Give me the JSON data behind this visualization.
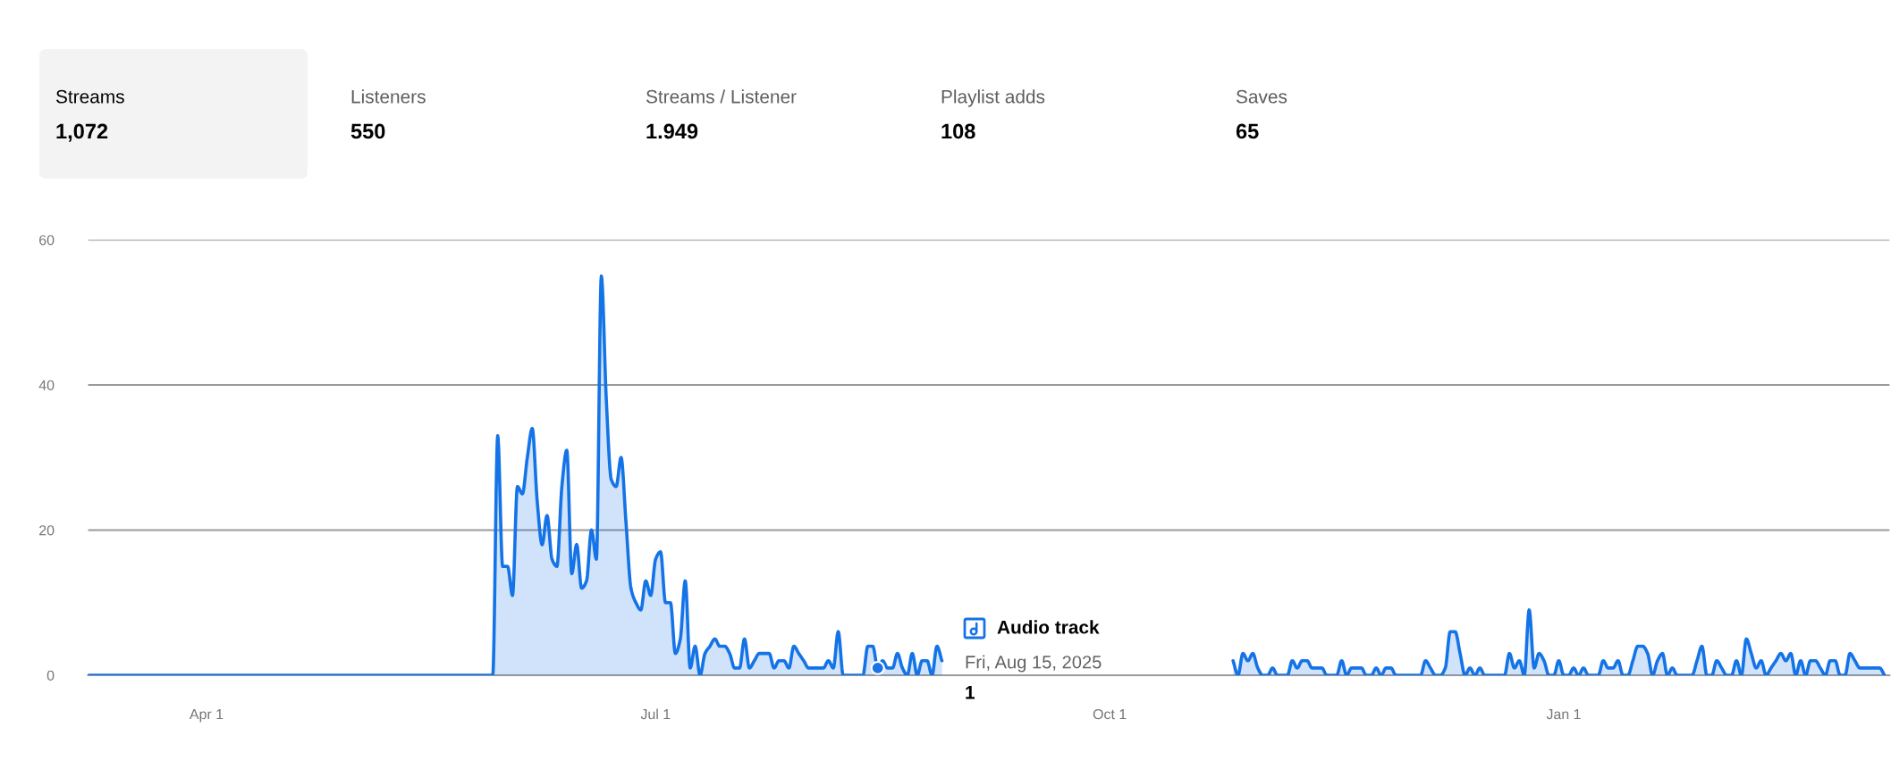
{
  "chart_data": [
    {
      "type": "other",
      "categories": [
        "Streams",
        "Listeners",
        "Streams / Listener",
        "Playlist adds",
        "Saves"
      ],
      "value_labels": [
        "1,072",
        "550",
        "1.949",
        "108",
        "65"
      ],
      "colors": [
        "#f3f3f3",
        "#ffffff",
        "#ffffff",
        "#ffffff",
        "#ffffff"
      ]
    },
    {
      "type": "area",
      "series": [
        {
          "type": "area",
          "color": "#1473e6",
          "x": [
            "2025-03-08",
            "2025-05-29",
            "2025-05-30",
            "2025-05-31",
            "2025-06-01",
            "2025-06-02",
            "2025-06-03",
            "2025-06-04",
            "2025-06-05",
            "2025-06-06",
            "2025-06-07",
            "2025-06-08",
            "2025-06-09",
            "2025-06-10",
            "2025-06-11",
            "2025-06-12",
            "2025-06-13",
            "2025-06-14",
            "2025-06-15",
            "2025-06-16",
            "2025-06-17",
            "2025-06-18",
            "2025-06-19",
            "2025-06-20",
            "2025-06-21",
            "2025-06-22",
            "2025-06-23",
            "2025-06-24",
            "2025-06-25",
            "2025-06-26",
            "2025-06-27",
            "2025-06-28",
            "2025-06-29",
            "2025-06-30",
            "2025-07-01",
            "2025-07-02",
            "2025-07-03",
            "2025-07-04",
            "2025-07-05",
            "2025-07-06",
            "2025-07-07",
            "2025-07-08",
            "2025-07-09",
            "2025-07-10",
            "2025-07-11",
            "2025-07-12",
            "2025-07-13",
            "2025-07-14",
            "2025-07-15",
            "2025-07-16",
            "2025-07-17",
            "2025-07-18",
            "2025-07-19",
            "2025-07-20",
            "2025-07-21",
            "2025-07-22",
            "2025-07-23",
            "2025-07-24",
            "2025-07-25",
            "2025-07-26",
            "2025-07-27",
            "2025-07-28",
            "2025-07-29",
            "2025-07-30",
            "2025-07-31",
            "2025-08-01",
            "2025-08-04",
            "2025-08-05",
            "2025-08-06",
            "2025-08-07",
            "2025-08-08",
            "2025-08-12",
            "2025-08-13",
            "2025-08-14",
            "2025-08-15",
            "2025-08-16",
            "2025-08-17",
            "2025-08-18",
            "2025-08-19",
            "2025-08-20",
            "2025-08-21",
            "2025-08-22",
            "2025-08-23",
            "2025-08-24",
            "2025-08-25",
            "2025-08-26",
            "2025-08-27",
            "2025-08-28",
            "2025-08-29",
            "2025-10-25",
            "2025-10-26",
            "2025-10-27",
            "2025-10-28",
            "2025-10-29",
            "2025-10-30",
            "2025-10-31",
            "2025-11-01",
            "2025-11-02",
            "2025-11-03",
            "2025-11-04",
            "2025-11-06",
            "2025-11-07",
            "2025-11-08",
            "2025-11-09",
            "2025-11-10",
            "2025-11-11",
            "2025-11-13",
            "2025-11-14",
            "2025-11-16",
            "2025-11-17",
            "2025-11-18",
            "2025-11-19",
            "2025-11-21",
            "2025-11-22",
            "2025-11-23",
            "2025-11-24",
            "2025-11-25",
            "2025-11-26",
            "2025-11-27",
            "2025-11-28",
            "2025-12-03",
            "2025-12-04",
            "2025-12-05",
            "2025-12-06",
            "2025-12-07",
            "2025-12-08",
            "2025-12-09",
            "2025-12-10",
            "2025-12-11",
            "2025-12-12",
            "2025-12-13",
            "2025-12-14",
            "2025-12-15",
            "2025-12-16",
            "2025-12-20",
            "2025-12-21",
            "2025-12-22",
            "2025-12-23",
            "2025-12-24",
            "2025-12-25",
            "2025-12-26",
            "2025-12-27",
            "2025-12-28",
            "2025-12-29",
            "2025-12-30",
            "2025-12-31",
            "2026-01-01",
            "2026-01-02",
            "2026-01-03",
            "2026-01-04",
            "2026-01-05",
            "2026-01-06",
            "2026-01-08",
            "2026-01-09",
            "2026-01-10",
            "2026-01-11",
            "2026-01-12",
            "2026-01-13",
            "2026-01-14",
            "2026-01-15",
            "2026-01-16",
            "2026-01-17",
            "2026-01-18",
            "2026-01-19",
            "2026-01-20",
            "2026-01-21",
            "2026-01-22",
            "2026-01-23",
            "2026-01-24",
            "2026-01-27",
            "2026-01-28",
            "2026-01-29",
            "2026-01-30",
            "2026-01-31",
            "2026-02-01",
            "2026-02-02",
            "2026-02-03",
            "2026-02-04",
            "2026-02-05",
            "2026-02-06",
            "2026-02-07",
            "2026-02-08",
            "2026-02-09",
            "2026-02-10",
            "2026-02-11",
            "2026-02-12",
            "2026-02-13",
            "2026-02-14",
            "2026-02-15",
            "2026-02-16",
            "2026-02-17",
            "2026-02-18",
            "2026-02-19",
            "2026-02-20",
            "2026-02-21",
            "2026-02-22",
            "2026-02-23",
            "2026-02-24",
            "2026-02-25",
            "2026-02-26",
            "2026-02-27",
            "2026-02-28",
            "2026-03-01",
            "2026-03-02",
            "2026-03-06",
            "2026-03-07"
          ],
          "values": [
            0,
            0,
            33,
            15,
            15,
            11,
            26,
            25,
            30,
            34,
            24,
            18,
            22,
            16,
            15,
            26,
            31,
            14,
            18,
            12,
            13,
            20,
            16,
            55,
            38,
            27,
            26,
            30,
            21,
            12,
            10,
            9,
            13,
            11,
            16,
            17,
            10,
            10,
            3,
            5,
            13,
            1,
            4,
            0,
            3,
            4,
            5,
            4,
            4,
            3,
            1,
            1,
            5,
            1,
            2,
            3,
            3,
            3,
            1,
            2,
            2,
            1,
            4,
            3,
            2,
            1,
            1,
            2,
            1,
            6,
            0,
            0,
            4,
            4,
            1,
            2,
            1,
            1,
            3,
            1,
            0,
            3,
            0,
            2,
            2,
            0,
            4,
            2,
            null,
            null,
            2,
            0,
            3,
            2,
            3,
            1,
            0,
            0,
            1,
            0,
            0,
            2,
            1,
            2,
            2,
            1,
            1,
            0,
            0,
            2,
            0,
            1,
            1,
            0,
            0,
            1,
            0,
            1,
            1,
            0,
            0,
            2,
            1,
            0,
            0,
            1,
            6,
            6,
            3,
            0,
            1,
            0,
            1,
            0,
            0,
            3,
            1,
            2,
            0,
            9,
            1,
            3,
            2,
            0,
            0,
            2,
            0,
            0,
            1,
            0,
            1,
            0,
            0,
            2,
            1,
            1,
            2,
            0,
            0,
            2,
            4,
            4,
            3,
            0,
            2,
            3,
            0,
            1,
            0,
            0,
            2,
            4,
            0,
            0,
            2,
            1,
            0,
            0,
            2,
            0,
            5,
            3,
            1,
            2,
            0,
            1,
            2,
            3,
            2,
            3,
            0,
            2,
            0,
            2,
            2,
            1,
            0,
            2,
            2,
            0,
            0,
            3,
            2,
            1,
            1,
            0
          ]
        },
        {
          "type": "scatter",
          "color": "#1a73e8",
          "marker": "circle",
          "x": [
            "2025-08-15"
          ],
          "values": [
            1
          ]
        }
      ],
      "xlim": [
        "2025-03-08",
        "2026-03-08"
      ],
      "ylim": [
        0,
        60
      ],
      "xticks": [
        {
          "value": "2025-04-01",
          "label": "Apr 1"
        },
        {
          "value": "2025-07-01",
          "label": "Jul 1"
        },
        {
          "value": "2025-10-01",
          "label": "Oct 1"
        },
        {
          "value": "2026-01-01",
          "label": "Jan 1"
        }
      ],
      "yticks": [
        0,
        20,
        40,
        60
      ],
      "grid": "y",
      "annotations": [
        "Audio track\nFri, Aug 15, 2025\n1"
      ]
    }
  ]
}
